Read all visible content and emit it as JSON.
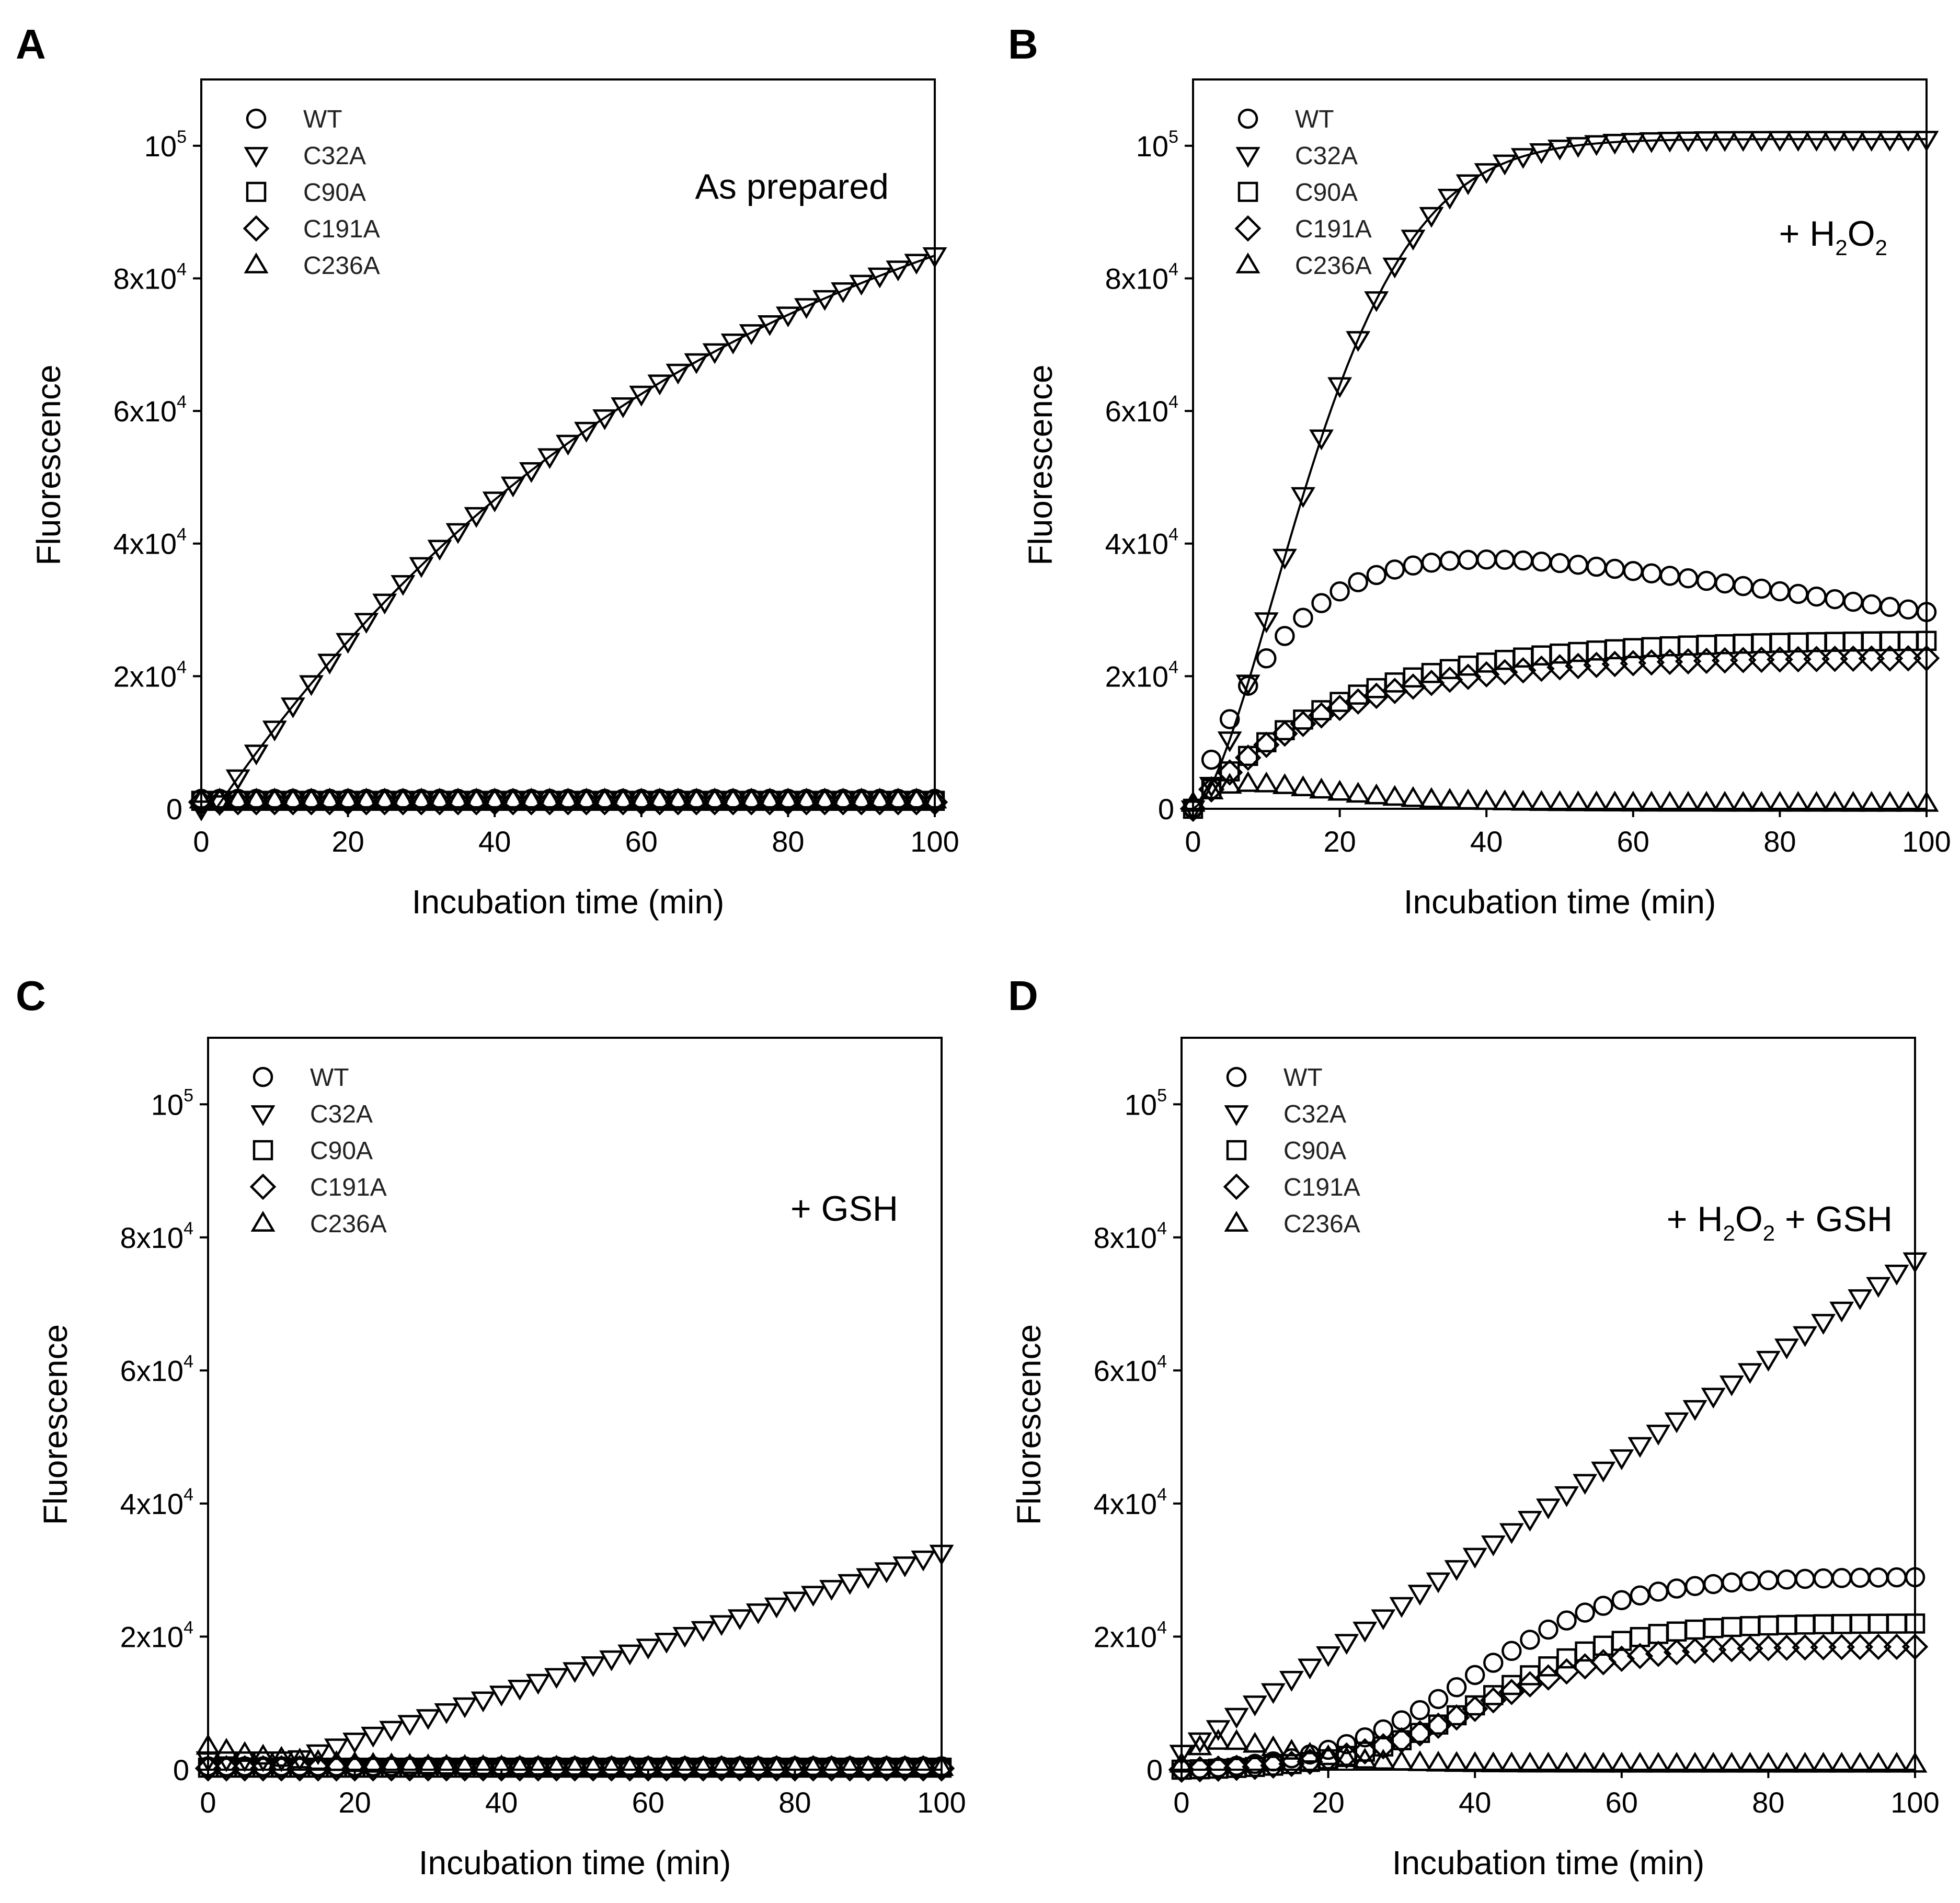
{
  "chart_data": [
    {
      "type": "scatter",
      "panel": "A",
      "annotation": "As prepared",
      "xlabel": "Incubation time (min)",
      "ylabel": "Fluorescence",
      "xlim": [
        0,
        100
      ],
      "ylim": [
        0,
        110000
      ],
      "x_ticks": [
        "0",
        "20",
        "40",
        "60",
        "80",
        "100"
      ],
      "y_ticks": [
        {
          "value": 0,
          "base": "0",
          "exp": ""
        },
        {
          "value": 20000,
          "base": "2x10",
          "exp": "4"
        },
        {
          "value": 40000,
          "base": "4x10",
          "exp": "4"
        },
        {
          "value": 60000,
          "base": "6x10",
          "exp": "4"
        },
        {
          "value": 80000,
          "base": "8x10",
          "exp": "4"
        },
        {
          "value": 100000,
          "base": "10",
          "exp": "5"
        }
      ],
      "legend": [
        "WT",
        "C32A",
        "C90A",
        "C191A",
        "C236A"
      ],
      "series": [
        {
          "name": "WT",
          "marker": "circle",
          "model": {
            "kind": "flat",
            "level": 1500
          }
        },
        {
          "name": "C32A",
          "marker": "triangle-down",
          "fit": true,
          "model": {
            "kind": "rise",
            "A": 110000,
            "k": 0.0145,
            "t0": 2
          }
        },
        {
          "name": "C90A",
          "marker": "square",
          "model": {
            "kind": "flat",
            "level": 1200
          }
        },
        {
          "name": "C191A",
          "marker": "diamond",
          "model": {
            "kind": "flat",
            "level": 1000
          }
        },
        {
          "name": "C236A",
          "marker": "triangle-up",
          "model": {
            "kind": "flat",
            "level": 1300
          }
        }
      ]
    },
    {
      "type": "scatter",
      "panel": "B",
      "annotation": "+ H",
      "annotation_sub": "2",
      "annotation_tail": "O",
      "annotation_sub2": "2",
      "xlabel": "Incubation time (min)",
      "ylabel": "Fluorescence",
      "xlim": [
        0,
        100
      ],
      "ylim": [
        0,
        110000
      ],
      "x_ticks": [
        "0",
        "20",
        "40",
        "60",
        "80",
        "100"
      ],
      "y_ticks": [
        {
          "value": 0,
          "base": "0",
          "exp": ""
        },
        {
          "value": 20000,
          "base": "2x10",
          "exp": "4"
        },
        {
          "value": 40000,
          "base": "4x10",
          "exp": "4"
        },
        {
          "value": 60000,
          "base": "6x10",
          "exp": "4"
        },
        {
          "value": 80000,
          "base": "8x10",
          "exp": "4"
        },
        {
          "value": 100000,
          "base": "10",
          "exp": "5"
        }
      ],
      "legend": [
        "WT",
        "C32A",
        "C90A",
        "C191A",
        "C236A"
      ],
      "series": [
        {
          "name": "WT",
          "marker": "circle",
          "model": {
            "kind": "risefall",
            "A": 50000,
            "k": 0.065,
            "d": 0.0052
          }
        },
        {
          "name": "C32A",
          "marker": "triangle-down",
          "fit": true,
          "model": {
            "kind": "sigmoid",
            "A": 101000,
            "k": 0.05,
            "n": 1.6
          }
        },
        {
          "name": "C90A",
          "marker": "square",
          "model": {
            "kind": "rise",
            "A": 25500,
            "k": 0.05,
            "t0": 0
          }
        },
        {
          "name": "C191A",
          "marker": "diamond",
          "model": {
            "kind": "rise",
            "A": 22800,
            "k": 0.055,
            "t0": 0
          }
        },
        {
          "name": "C236A",
          "marker": "triangle-up",
          "model": {
            "kind": "bump",
            "base": 800,
            "peak": 3000,
            "tau": 8
          }
        }
      ]
    },
    {
      "type": "scatter",
      "panel": "C",
      "annotation": "+ GSH",
      "xlabel": "Incubation time (min)",
      "ylabel": "Fluorescence",
      "xlim": [
        0,
        100
      ],
      "ylim": [
        0,
        110000
      ],
      "x_ticks": [
        "0",
        "20",
        "40",
        "60",
        "80",
        "100"
      ],
      "y_ticks": [
        {
          "value": 0,
          "base": "0",
          "exp": ""
        },
        {
          "value": 20000,
          "base": "2x10",
          "exp": "4"
        },
        {
          "value": 40000,
          "base": "4x10",
          "exp": "4"
        },
        {
          "value": 60000,
          "base": "6x10",
          "exp": "4"
        },
        {
          "value": 80000,
          "base": "8x10",
          "exp": "4"
        },
        {
          "value": 100000,
          "base": "10",
          "exp": "5"
        }
      ],
      "legend": [
        "WT",
        "C32A",
        "C90A",
        "C191A",
        "C236A"
      ],
      "series": [
        {
          "name": "WT",
          "marker": "circle",
          "model": {
            "kind": "flat",
            "level": 500
          }
        },
        {
          "name": "C32A",
          "marker": "triangle-down",
          "model": {
            "kind": "linear",
            "start": 12,
            "slope": 353,
            "base": 1500
          }
        },
        {
          "name": "C90A",
          "marker": "square",
          "model": {
            "kind": "flat",
            "level": 300
          }
        },
        {
          "name": "C191A",
          "marker": "diamond",
          "model": {
            "kind": "flat",
            "level": 200
          }
        },
        {
          "name": "C236A",
          "marker": "triangle-up",
          "model": {
            "kind": "decay",
            "A": 3200,
            "tau": 12,
            "base": 300
          }
        }
      ]
    },
    {
      "type": "scatter",
      "panel": "D",
      "annotation": "+ H",
      "annotation_sub": "2",
      "annotation_tail": "O",
      "annotation_sub2": "2",
      "annotation_end": " + GSH",
      "xlabel": "Incubation time (min)",
      "ylabel": "Fluorescence",
      "xlim": [
        0,
        100
      ],
      "ylim": [
        0,
        110000
      ],
      "x_ticks": [
        "0",
        "20",
        "40",
        "60",
        "80",
        "100"
      ],
      "y_ticks": [
        {
          "value": 0,
          "base": "0",
          "exp": ""
        },
        {
          "value": 20000,
          "base": "2x10",
          "exp": "4"
        },
        {
          "value": 40000,
          "base": "4x10",
          "exp": "4"
        },
        {
          "value": 60000,
          "base": "6x10",
          "exp": "4"
        },
        {
          "value": 80000,
          "base": "8x10",
          "exp": "4"
        },
        {
          "value": 100000,
          "base": "10",
          "exp": "5"
        }
      ],
      "legend": [
        "WT",
        "C32A",
        "C90A",
        "C191A",
        "C236A"
      ],
      "series": [
        {
          "name": "WT",
          "marker": "circle",
          "model": {
            "kind": "logistic",
            "A": 29000,
            "mid": 40,
            "s": 10
          }
        },
        {
          "name": "C32A",
          "marker": "triangle-down",
          "model": {
            "kind": "linear",
            "start": 0,
            "slope": 740,
            "base": 2500
          }
        },
        {
          "name": "C90A",
          "marker": "square",
          "model": {
            "kind": "logistic",
            "A": 22000,
            "mid": 42,
            "s": 9
          }
        },
        {
          "name": "C191A",
          "marker": "diamond",
          "model": {
            "kind": "logistic",
            "A": 18500,
            "mid": 40,
            "s": 9
          }
        },
        {
          "name": "C236A",
          "marker": "triangle-up",
          "model": {
            "kind": "bump",
            "base": 800,
            "peak": 3500,
            "tau": 6
          }
        }
      ]
    }
  ]
}
